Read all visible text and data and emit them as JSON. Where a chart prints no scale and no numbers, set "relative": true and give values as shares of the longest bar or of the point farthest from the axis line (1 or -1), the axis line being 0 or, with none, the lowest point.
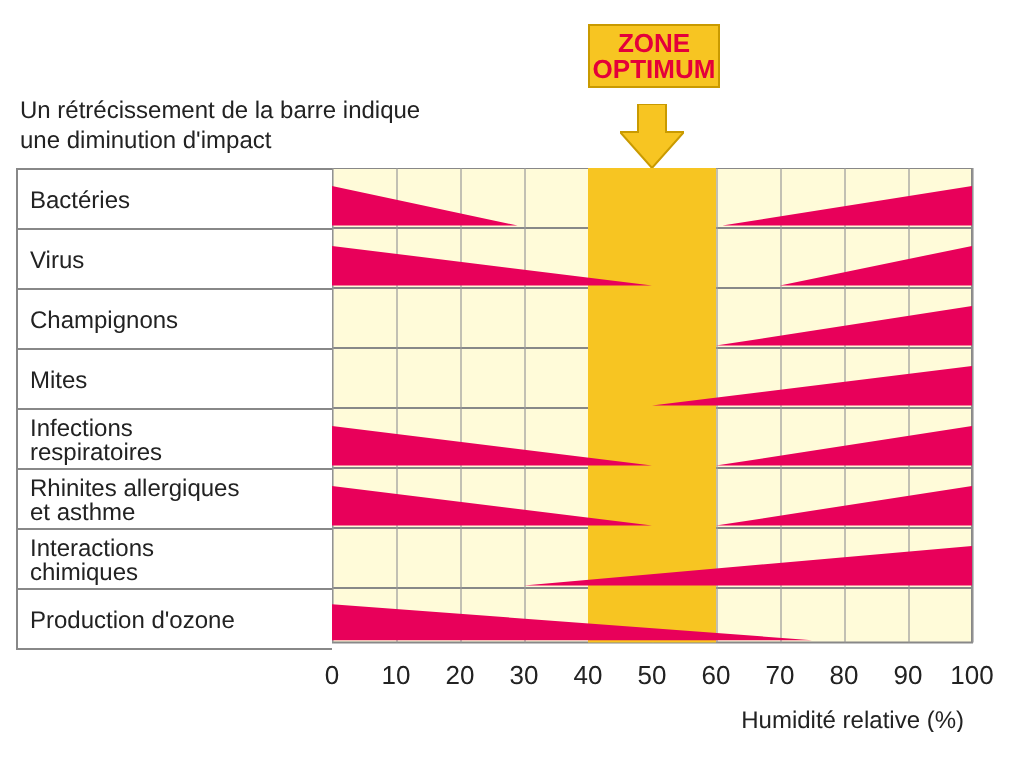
{
  "chart_data": [
    {
      "type": "area",
      "ylabel": "Bactéries",
      "annotations": [
        "Un rétrécissement de la barre indique une diminution d'impact",
        "ZONE OPTIMUM"
      ],
      "x": [
        0,
        29,
        61,
        100
      ],
      "values": [
        1,
        0,
        0,
        1
      ],
      "color": "#e8005a",
      "relative": true,
      "xlim": [
        0,
        100
      ],
      "xticks": [
        0,
        10,
        20,
        30,
        40,
        50,
        60,
        70,
        80,
        90,
        100
      ],
      "tick_labels": false,
      "grid": "x",
      "marker": "none",
      "bands": [
        {
          "axis": "x",
          "from": 40,
          "to": 60,
          "color": "#f7c522"
        }
      ]
    },
    {
      "type": "area",
      "ylabel": "Virus",
      "x": [
        0,
        50,
        70,
        100
      ],
      "values": [
        1,
        0,
        0,
        1
      ],
      "color": "#e8005a",
      "relative": true,
      "xlim": [
        0,
        100
      ],
      "xticks": [
        0,
        10,
        20,
        30,
        40,
        50,
        60,
        70,
        80,
        90,
        100
      ],
      "tick_labels": false,
      "grid": "x",
      "marker": "none",
      "bands": [
        {
          "axis": "x",
          "from": 40,
          "to": 60,
          "color": "#f7c522"
        }
      ]
    },
    {
      "type": "area",
      "ylabel": "Champignons",
      "x": [
        60,
        100
      ],
      "values": [
        0,
        1
      ],
      "color": "#e8005a",
      "relative": true,
      "xlim": [
        0,
        100
      ],
      "xticks": [
        0,
        10,
        20,
        30,
        40,
        50,
        60,
        70,
        80,
        90,
        100
      ],
      "tick_labels": false,
      "grid": "x",
      "marker": "none",
      "bands": [
        {
          "axis": "x",
          "from": 40,
          "to": 60,
          "color": "#f7c522"
        }
      ]
    },
    {
      "type": "area",
      "ylabel": "Mites",
      "x": [
        50,
        100
      ],
      "values": [
        0,
        1
      ],
      "color": "#e8005a",
      "relative": true,
      "xlim": [
        0,
        100
      ],
      "xticks": [
        0,
        10,
        20,
        30,
        40,
        50,
        60,
        70,
        80,
        90,
        100
      ],
      "tick_labels": false,
      "grid": "x",
      "marker": "none",
      "bands": [
        {
          "axis": "x",
          "from": 40,
          "to": 60,
          "color": "#f7c522"
        }
      ]
    },
    {
      "type": "area",
      "ylabel": "Infections respiratoires",
      "x": [
        0,
        50,
        60,
        100
      ],
      "values": [
        1,
        0,
        0,
        1
      ],
      "color": "#e8005a",
      "relative": true,
      "xlim": [
        0,
        100
      ],
      "xticks": [
        0,
        10,
        20,
        30,
        40,
        50,
        60,
        70,
        80,
        90,
        100
      ],
      "tick_labels": false,
      "grid": "x",
      "marker": "none",
      "bands": [
        {
          "axis": "x",
          "from": 40,
          "to": 60,
          "color": "#f7c522"
        }
      ]
    },
    {
      "type": "area",
      "ylabel": "Rhinites allergiques et asthme",
      "x": [
        0,
        50,
        60,
        100
      ],
      "values": [
        1,
        0,
        0,
        1
      ],
      "color": "#e8005a",
      "relative": true,
      "xlim": [
        0,
        100
      ],
      "xticks": [
        0,
        10,
        20,
        30,
        40,
        50,
        60,
        70,
        80,
        90,
        100
      ],
      "tick_labels": false,
      "grid": "x",
      "marker": "none",
      "bands": [
        {
          "axis": "x",
          "from": 40,
          "to": 60,
          "color": "#f7c522"
        }
      ]
    },
    {
      "type": "area",
      "ylabel": "Interactions chimiques",
      "x": [
        30,
        100
      ],
      "values": [
        0,
        1
      ],
      "color": "#e8005a",
      "relative": true,
      "xlim": [
        0,
        100
      ],
      "xticks": [
        0,
        10,
        20,
        30,
        40,
        50,
        60,
        70,
        80,
        90,
        100
      ],
      "tick_labels": false,
      "grid": "x",
      "marker": "none",
      "bands": [
        {
          "axis": "x",
          "from": 40,
          "to": 60,
          "color": "#f7c522"
        }
      ]
    },
    {
      "type": "area",
      "ylabel": "Production d'ozone",
      "xlabel": "Humidité relative (%)",
      "x": [
        0,
        75
      ],
      "values": [
        1,
        0
      ],
      "color": "#e8005a",
      "relative": true,
      "xlim": [
        0,
        100
      ],
      "xticks": [
        0,
        10,
        20,
        30,
        40,
        50,
        60,
        70,
        80,
        90,
        100
      ],
      "tick_labels": "x",
      "grid": "x",
      "marker": "none",
      "bands": [
        {
          "axis": "x",
          "from": 40,
          "to": 60,
          "color": "#f7c522"
        }
      ]
    }
  ]
}
